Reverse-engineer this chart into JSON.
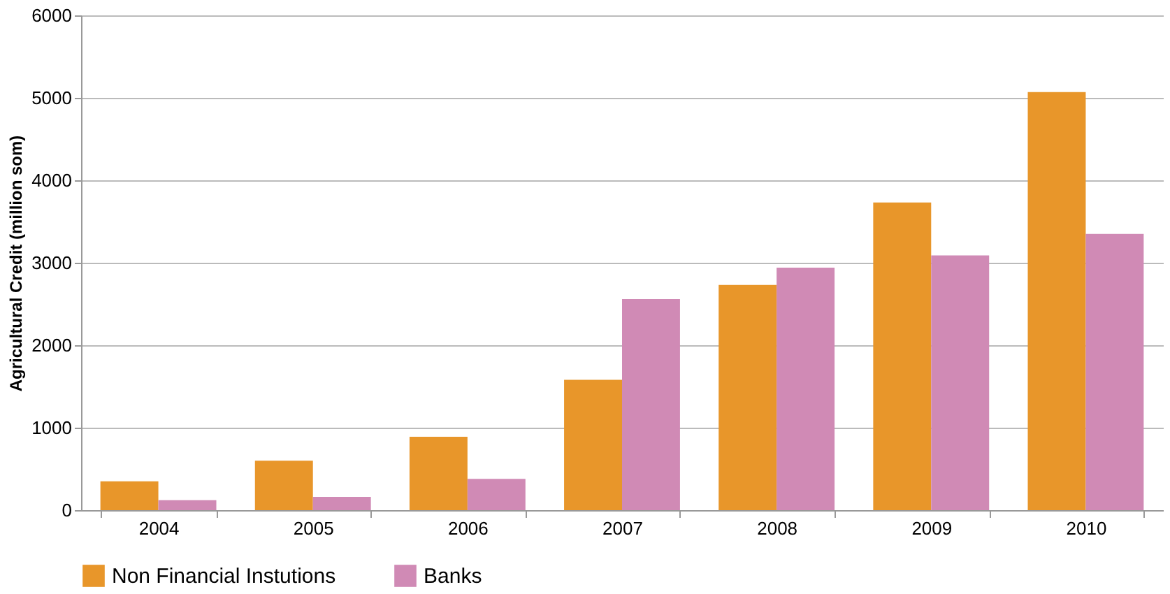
{
  "chart_data": {
    "type": "bar",
    "ylabel": "Agricultural Credit (million som)",
    "categories": [
      "2004",
      "2005",
      "2006",
      "2007",
      "2008",
      "2009",
      "2010"
    ],
    "series": [
      {
        "name": "Non Financial Instutions",
        "color": "#e8962a",
        "values": [
          350,
          600,
          890,
          1580,
          2730,
          3730,
          5070
        ]
      },
      {
        "name": "Banks",
        "color": "#d08ab5",
        "values": [
          120,
          160,
          380,
          2560,
          2940,
          3090,
          3350
        ]
      }
    ],
    "ylim": [
      0,
      6000
    ],
    "yticks": [
      0,
      1000,
      2000,
      3000,
      4000,
      5000,
      6000
    ],
    "grid": "y",
    "legend": "bottom"
  }
}
